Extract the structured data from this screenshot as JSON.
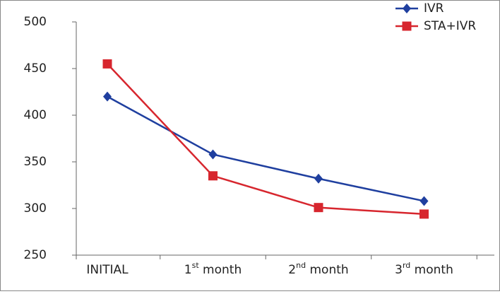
{
  "chart_data": {
    "type": "line",
    "categories": [
      "INITIAL",
      "1st month",
      "2nd month",
      "3rd month"
    ],
    "series": [
      {
        "name": "IVR",
        "color": "#1f3f9f",
        "marker": "diamond",
        "values": [
          420,
          358,
          332,
          308
        ]
      },
      {
        "name": "STA+IVR",
        "color": "#d7262e",
        "marker": "square",
        "values": [
          455,
          335,
          301,
          294
        ]
      }
    ],
    "ylim": [
      250,
      500
    ],
    "yticks": [
      250,
      300,
      350,
      400,
      450,
      500
    ],
    "grid": false,
    "legend": "top-right"
  }
}
